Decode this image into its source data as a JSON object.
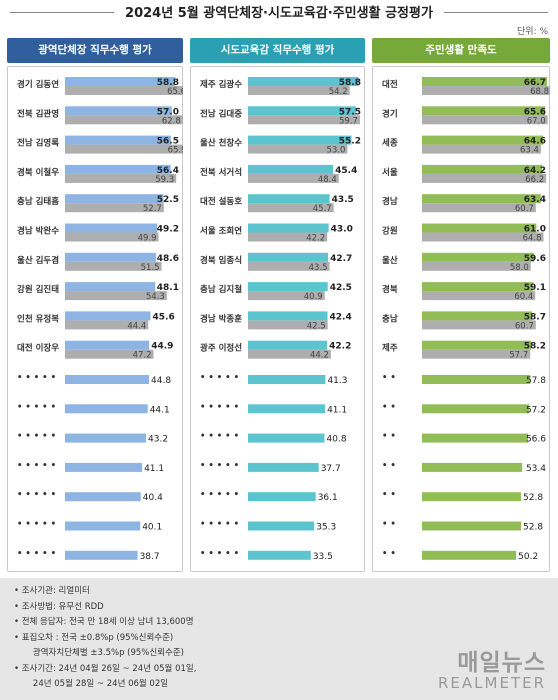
{
  "title": "2024년 5월 광역단체장·시도교육감·주민생활 긍정평가",
  "unit_label": "단위: %",
  "colors": {
    "blue": "#8db4e2",
    "teal": "#5bc4cf",
    "green": "#92bd56",
    "gray": "#aeaeae",
    "blue_head": "#315f9e",
    "teal_head": "#2aa0b3",
    "green_head": "#76a83a"
  },
  "chart_data": [
    {
      "type": "bar",
      "title": "광역단체장 직무수행 평가",
      "categories": [
        "경기 김동연",
        "전북 김관영",
        "전남 김영록",
        "경북 이철우",
        "충남 김태흠",
        "경남 박완수",
        "울산 김두겸",
        "강원 김진태",
        "인천 유정복",
        "대전 이장우",
        "• •   • • •",
        "• •   • • •",
        "• •   • • •",
        "• •   • • •",
        "• •   • • •",
        "• •   • • •",
        "• •   • • •"
      ],
      "series": [
        {
          "values": [
            58.8,
            57.0,
            56.5,
            56.4,
            52.5,
            49.2,
            48.6,
            48.1,
            45.6,
            44.9,
            44.8,
            44.1,
            43.2,
            41.1,
            40.4,
            40.1,
            38.7
          ]
        },
        {
          "values": [
            65.6,
            62.8,
            65.9,
            59.3,
            52.7,
            49.9,
            51.5,
            54.3,
            44.4,
            47.2,
            null,
            null,
            null,
            null,
            null,
            null,
            null
          ]
        }
      ],
      "xlim": [
        0,
        100
      ]
    },
    {
      "type": "bar",
      "title": "시도교육감 직무수행 평가",
      "categories": [
        "제주 김광수",
        "전남 김대중",
        "울산 천창수",
        "전북 서거석",
        "대전 설동호",
        "서울 조희연",
        "경북 임종식",
        "충남 김지철",
        "경남 박종훈",
        "광주 이정선",
        "• •   • • •",
        "• •   • • •",
        "• •   • • •",
        "• •   • • •",
        "• •   • • •",
        "• •   • • •",
        "• •   • • •"
      ],
      "series": [
        {
          "values": [
            58.8,
            57.5,
            55.2,
            45.4,
            43.5,
            43.0,
            42.7,
            42.5,
            42.4,
            42.2,
            41.3,
            41.1,
            40.8,
            37.7,
            36.1,
            35.3,
            33.5
          ]
        },
        {
          "values": [
            54.2,
            59.7,
            53.0,
            48.4,
            45.7,
            42.2,
            43.5,
            40.9,
            42.5,
            44.2,
            null,
            null,
            null,
            null,
            null,
            null,
            null
          ]
        }
      ],
      "xlim": [
        0,
        100
      ]
    },
    {
      "type": "bar",
      "title": "주민생활 만족도",
      "categories": [
        "대전",
        "경기",
        "세종",
        "서울",
        "경남",
        "강원",
        "울산",
        "경북",
        "충남",
        "제주",
        "• •",
        "• •",
        "• •",
        "• •",
        "• •",
        "• •",
        "• •"
      ],
      "series": [
        {
          "values": [
            66.7,
            65.6,
            64.6,
            64.2,
            63.4,
            61.0,
            59.6,
            59.1,
            58.7,
            58.2,
            57.8,
            57.2,
            56.6,
            53.4,
            52.8,
            52.8,
            50.2
          ]
        },
        {
          "values": [
            68.8,
            67.0,
            63.4,
            66.2,
            60.7,
            64.8,
            58.0,
            60.4,
            60.7,
            57.7,
            null,
            null,
            null,
            null,
            null,
            null,
            null
          ]
        }
      ],
      "xlim": [
        0,
        100
      ]
    }
  ],
  "footer": {
    "lines": [
      "• 조사기관: 리얼미터",
      "• 조사방법: 유무선 RDD",
      "• 전체 응답자: 전국 만 18세 이상 남녀 13,600명",
      "• 표집오차 : 전국 ±0.8%p (95%신뢰수준)",
      "       광역자치단체별 ±3.5%p (95%신뢰수준)",
      "• 조사기간: 24년 04월 26일 ~ 24년 05월 01일,",
      "       24년 05월 28일 ~ 24년 06월 02일"
    ]
  },
  "brand": {
    "korean": "매일뉴스",
    "english": "REALMETER"
  }
}
